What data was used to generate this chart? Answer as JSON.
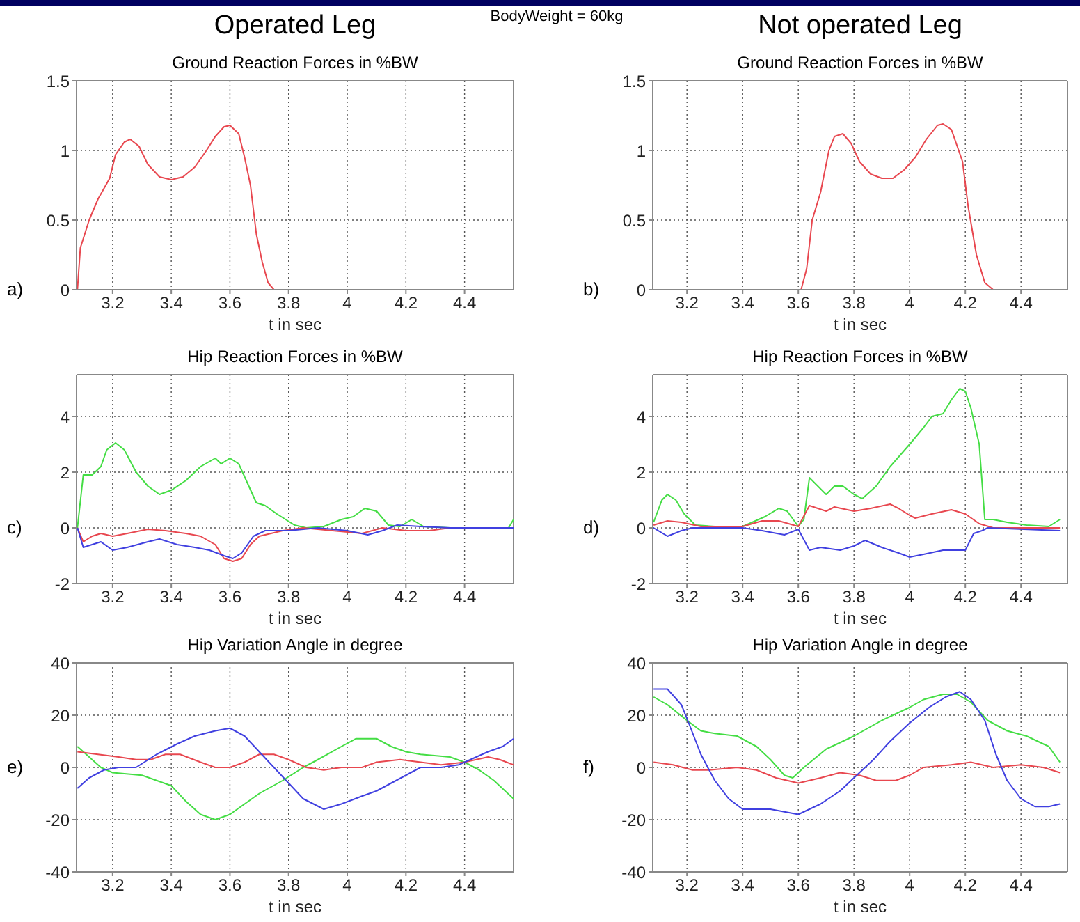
{
  "chart_data": [
    {
      "type": "line",
      "title": "Operated Leg",
      "subtitle": "Ground Reaction Forces in %BW",
      "xlabel": "t in sec",
      "annotations": [
        "BodyWeight = 60kg",
        "a)"
      ],
      "xlim": [
        3.077,
        4.567
      ],
      "xticks": [
        3.2,
        3.4,
        3.6,
        3.8,
        4,
        4.2,
        4.4
      ],
      "ylim": [
        0,
        1.5
      ],
      "yticks": [
        0,
        0.5,
        1,
        1.5
      ],
      "grid": true,
      "series": [
        {
          "color": "#e8474f",
          "x": [
            3.08,
            3.09,
            3.12,
            3.15,
            3.19,
            3.21,
            3.24,
            3.26,
            3.29,
            3.32,
            3.36,
            3.4,
            3.44,
            3.48,
            3.52,
            3.55,
            3.58,
            3.6,
            3.63,
            3.65,
            3.67,
            3.69,
            3.71,
            3.73,
            3.75
          ],
          "values": [
            0,
            0.3,
            0.5,
            0.65,
            0.8,
            0.97,
            1.06,
            1.08,
            1.03,
            0.9,
            0.81,
            0.79,
            0.81,
            0.88,
            1.0,
            1.1,
            1.17,
            1.18,
            1.12,
            0.95,
            0.75,
            0.4,
            0.2,
            0.05,
            0
          ]
        }
      ]
    },
    {
      "type": "line",
      "title": "Not operated Leg",
      "subtitle": "Ground Reaction Forces in %BW",
      "xlabel": "t in sec",
      "annotations": [
        "b)"
      ],
      "xlim": [
        3.077,
        4.567
      ],
      "xticks": [
        3.2,
        3.4,
        3.6,
        3.8,
        4,
        4.2,
        4.4
      ],
      "ylim": [
        0,
        1.5
      ],
      "yticks": [
        0,
        0.5,
        1,
        1.5
      ],
      "grid": true,
      "series": [
        {
          "color": "#e8474f",
          "x": [
            3.61,
            3.63,
            3.65,
            3.68,
            3.71,
            3.73,
            3.76,
            3.79,
            3.82,
            3.86,
            3.9,
            3.94,
            3.98,
            4.02,
            4.06,
            4.1,
            4.12,
            4.15,
            4.19,
            4.21,
            4.24,
            4.27,
            4.3
          ],
          "values": [
            0,
            0.15,
            0.5,
            0.7,
            1.0,
            1.1,
            1.12,
            1.05,
            0.92,
            0.83,
            0.8,
            0.8,
            0.86,
            0.95,
            1.08,
            1.18,
            1.19,
            1.15,
            0.92,
            0.6,
            0.25,
            0.05,
            0
          ]
        }
      ]
    },
    {
      "type": "line",
      "title": "Hip Reaction Forces in %BW",
      "xlabel": "t in sec",
      "annotations": [
        "c)"
      ],
      "xlim": [
        3.077,
        4.567
      ],
      "xticks": [
        3.2,
        3.4,
        3.6,
        3.8,
        4,
        4.2,
        4.4
      ],
      "ylim": [
        -2,
        5.5
      ],
      "yticks": [
        -2,
        0,
        2,
        4
      ],
      "grid": true,
      "series": [
        {
          "color": "#44dd44",
          "x": [
            3.08,
            3.1,
            3.13,
            3.16,
            3.18,
            3.21,
            3.24,
            3.28,
            3.32,
            3.36,
            3.4,
            3.45,
            3.5,
            3.55,
            3.57,
            3.6,
            3.63,
            3.66,
            3.69,
            3.72,
            3.76,
            3.82,
            3.86,
            3.92,
            3.98,
            4.02,
            4.06,
            4.1,
            4.14,
            4.18,
            4.22,
            4.26,
            4.35,
            4.5,
            4.55,
            4.567
          ],
          "values": [
            0,
            1.9,
            1.9,
            2.2,
            2.8,
            3.05,
            2.8,
            2.0,
            1.5,
            1.2,
            1.35,
            1.7,
            2.2,
            2.5,
            2.3,
            2.5,
            2.3,
            1.6,
            0.9,
            0.8,
            0.5,
            0.1,
            0,
            0.05,
            0.3,
            0.4,
            0.7,
            0.6,
            0.1,
            0.05,
            0.3,
            0.05,
            0,
            0,
            0,
            0.3
          ]
        },
        {
          "color": "#e8474f",
          "x": [
            3.08,
            3.1,
            3.13,
            3.16,
            3.2,
            3.25,
            3.32,
            3.38,
            3.45,
            3.5,
            3.55,
            3.58,
            3.61,
            3.64,
            3.67,
            3.7,
            3.78,
            3.85,
            3.95,
            4.05,
            4.12,
            4.2,
            4.28,
            4.35,
            4.567
          ],
          "values": [
            0,
            -0.5,
            -0.3,
            -0.2,
            -0.3,
            -0.2,
            -0.05,
            -0.1,
            -0.2,
            -0.3,
            -0.6,
            -1.1,
            -1.2,
            -1.1,
            -0.6,
            -0.3,
            -0.1,
            0,
            -0.1,
            -0.2,
            0,
            -0.1,
            -0.1,
            0,
            0
          ]
        },
        {
          "color": "#4040e0",
          "x": [
            3.08,
            3.1,
            3.13,
            3.16,
            3.2,
            3.25,
            3.32,
            3.36,
            3.42,
            3.48,
            3.53,
            3.58,
            3.61,
            3.64,
            3.68,
            3.72,
            3.8,
            3.9,
            4.0,
            4.07,
            4.12,
            4.17,
            4.25,
            4.35,
            4.567
          ],
          "values": [
            0,
            -0.7,
            -0.6,
            -0.5,
            -0.8,
            -0.7,
            -0.5,
            -0.4,
            -0.6,
            -0.7,
            -0.8,
            -1.0,
            -1.1,
            -0.9,
            -0.3,
            -0.1,
            -0.1,
            0,
            -0.1,
            -0.25,
            -0.1,
            0.1,
            0.05,
            0,
            0
          ]
        }
      ]
    },
    {
      "type": "line",
      "title": "Hip Reaction Forces in %BW",
      "xlabel": "t in sec",
      "annotations": [
        "d)"
      ],
      "xlim": [
        3.077,
        4.567
      ],
      "xticks": [
        3.2,
        3.4,
        3.6,
        3.8,
        4,
        4.2,
        4.4
      ],
      "ylim": [
        -2,
        5.5
      ],
      "yticks": [
        -2,
        0,
        2,
        4
      ],
      "grid": true,
      "series": [
        {
          "color": "#44dd44",
          "x": [
            3.08,
            3.11,
            3.13,
            3.16,
            3.19,
            3.23,
            3.3,
            3.4,
            3.48,
            3.53,
            3.56,
            3.6,
            3.62,
            3.64,
            3.67,
            3.7,
            3.73,
            3.76,
            3.8,
            3.83,
            3.88,
            3.93,
            4.0,
            4.05,
            4.08,
            4.12,
            4.15,
            4.18,
            4.2,
            4.22,
            4.25,
            4.27,
            4.3,
            4.35,
            4.42,
            4.5,
            4.54
          ],
          "values": [
            0.2,
            1.0,
            1.2,
            1.0,
            0.5,
            0.1,
            0.05,
            0.05,
            0.4,
            0.7,
            0.6,
            0.05,
            0.3,
            1.8,
            1.5,
            1.2,
            1.5,
            1.5,
            1.2,
            1.05,
            1.5,
            2.2,
            3.0,
            3.6,
            4.0,
            4.1,
            4.6,
            5.0,
            4.9,
            4.3,
            3.0,
            0.3,
            0.3,
            0.2,
            0.1,
            0.05,
            0.3
          ]
        },
        {
          "color": "#e8474f",
          "x": [
            3.08,
            3.13,
            3.18,
            3.25,
            3.4,
            3.47,
            3.53,
            3.6,
            3.64,
            3.7,
            3.73,
            3.8,
            3.86,
            3.93,
            3.96,
            4.0,
            4.02,
            4.08,
            4.15,
            4.2,
            4.25,
            4.3,
            4.54
          ],
          "values": [
            0.1,
            0.25,
            0.2,
            0.05,
            0.05,
            0.25,
            0.25,
            0.05,
            0.8,
            0.6,
            0.75,
            0.6,
            0.7,
            0.85,
            0.7,
            0.45,
            0.35,
            0.5,
            0.65,
            0.5,
            0.15,
            0,
            0
          ]
        },
        {
          "color": "#4040e0",
          "x": [
            3.08,
            3.13,
            3.18,
            3.22,
            3.4,
            3.47,
            3.55,
            3.6,
            3.64,
            3.68,
            3.75,
            3.8,
            3.84,
            3.9,
            3.96,
            4.0,
            4.05,
            4.12,
            4.15,
            4.2,
            4.23,
            4.26,
            4.28,
            4.54
          ],
          "values": [
            0,
            -0.3,
            -0.1,
            0,
            0,
            -0.1,
            -0.25,
            -0.05,
            -0.8,
            -0.7,
            -0.8,
            -0.65,
            -0.45,
            -0.7,
            -0.9,
            -1.05,
            -0.95,
            -0.8,
            -0.8,
            -0.8,
            -0.2,
            -0.1,
            0,
            -0.1
          ]
        }
      ]
    },
    {
      "type": "line",
      "title": "Hip Variation Angle in degree",
      "xlabel": "t in sec",
      "annotations": [
        "e)"
      ],
      "xlim": [
        3.077,
        4.567
      ],
      "xticks": [
        3.2,
        3.4,
        3.6,
        3.8,
        4,
        4.2,
        4.4
      ],
      "ylim": [
        -40,
        40
      ],
      "yticks": [
        -40,
        -20,
        0,
        20,
        40
      ],
      "grid": true,
      "series": [
        {
          "color": "#44dd44",
          "x": [
            3.08,
            3.12,
            3.16,
            3.2,
            3.3,
            3.4,
            3.45,
            3.5,
            3.55,
            3.6,
            3.65,
            3.7,
            3.78,
            3.85,
            3.9,
            3.98,
            4.03,
            4.1,
            4.15,
            4.2,
            4.25,
            4.35,
            4.4,
            4.45,
            4.5,
            4.567
          ],
          "values": [
            8,
            4,
            0,
            -2,
            -3,
            -7,
            -13,
            -18,
            -20,
            -18,
            -14,
            -10,
            -5,
            0,
            3,
            8,
            11,
            11,
            8,
            6,
            5,
            4,
            2,
            -1,
            -5,
            -12
          ]
        },
        {
          "color": "#e8474f",
          "x": [
            3.08,
            3.15,
            3.22,
            3.28,
            3.33,
            3.38,
            3.43,
            3.5,
            3.55,
            3.6,
            3.65,
            3.7,
            3.75,
            3.8,
            3.86,
            3.92,
            3.98,
            4.05,
            4.1,
            4.18,
            4.25,
            4.32,
            4.4,
            4.48,
            4.52,
            4.567
          ],
          "values": [
            6,
            5,
            4,
            3,
            3,
            5,
            5,
            2,
            0,
            0,
            2,
            5,
            5,
            3,
            0,
            -1,
            0,
            0,
            2,
            3,
            2,
            1,
            2,
            4,
            3,
            1
          ]
        },
        {
          "color": "#4040e0",
          "x": [
            3.08,
            3.12,
            3.17,
            3.22,
            3.28,
            3.35,
            3.42,
            3.48,
            3.55,
            3.6,
            3.65,
            3.7,
            3.75,
            3.8,
            3.85,
            3.92,
            3.98,
            4.05,
            4.1,
            4.15,
            4.2,
            4.25,
            4.32,
            4.38,
            4.42,
            4.48,
            4.53,
            4.567
          ],
          "values": [
            -8,
            -4,
            -1,
            0,
            0,
            5,
            9,
            12,
            14,
            15,
            12,
            6,
            0,
            -6,
            -12,
            -16,
            -14,
            -11,
            -9,
            -6,
            -3,
            0,
            0,
            1,
            3,
            6,
            8,
            11
          ]
        }
      ]
    },
    {
      "type": "line",
      "title": "Hip Variation Angle in degree",
      "xlabel": "t in sec",
      "annotations": [
        "f)"
      ],
      "xlim": [
        3.077,
        4.567
      ],
      "xticks": [
        3.2,
        3.4,
        3.6,
        3.8,
        4,
        4.2,
        4.4
      ],
      "ylim": [
        -40,
        40
      ],
      "yticks": [
        -40,
        -20,
        0,
        20,
        40
      ],
      "grid": true,
      "series": [
        {
          "color": "#44dd44",
          "x": [
            3.08,
            3.13,
            3.2,
            3.25,
            3.3,
            3.38,
            3.45,
            3.5,
            3.55,
            3.58,
            3.62,
            3.7,
            3.8,
            3.9,
            4.0,
            4.05,
            4.12,
            4.17,
            4.22,
            4.28,
            4.35,
            4.42,
            4.5,
            4.54
          ],
          "values": [
            27,
            24,
            18,
            14,
            13,
            12,
            8,
            3,
            -3,
            -4,
            0,
            7,
            12,
            18,
            23,
            26,
            28,
            28,
            25,
            18,
            14,
            12,
            8,
            2
          ]
        },
        {
          "color": "#e8474f",
          "x": [
            3.08,
            3.15,
            3.22,
            3.28,
            3.38,
            3.45,
            3.52,
            3.6,
            3.68,
            3.75,
            3.82,
            3.88,
            3.95,
            4.0,
            4.05,
            4.15,
            4.22,
            4.3,
            4.4,
            4.48,
            4.54
          ],
          "values": [
            2,
            1,
            -1,
            -1,
            0,
            -1,
            -4,
            -6,
            -4,
            -2,
            -3,
            -5,
            -5,
            -3,
            0,
            1,
            2,
            0,
            1,
            0,
            -2
          ]
        },
        {
          "color": "#4040e0",
          "x": [
            3.08,
            3.13,
            3.18,
            3.21,
            3.25,
            3.3,
            3.35,
            3.4,
            3.5,
            3.55,
            3.6,
            3.68,
            3.75,
            3.8,
            3.87,
            3.93,
            4.0,
            4.07,
            4.13,
            4.18,
            4.22,
            4.27,
            4.31,
            4.35,
            4.4,
            4.45,
            4.5,
            4.54
          ],
          "values": [
            30,
            30,
            24,
            16,
            5,
            -5,
            -12,
            -16,
            -16,
            -17,
            -18,
            -14,
            -9,
            -4,
            3,
            10,
            17,
            23,
            27,
            29,
            26,
            18,
            5,
            -5,
            -12,
            -15,
            -15,
            -14
          ]
        }
      ]
    }
  ]
}
